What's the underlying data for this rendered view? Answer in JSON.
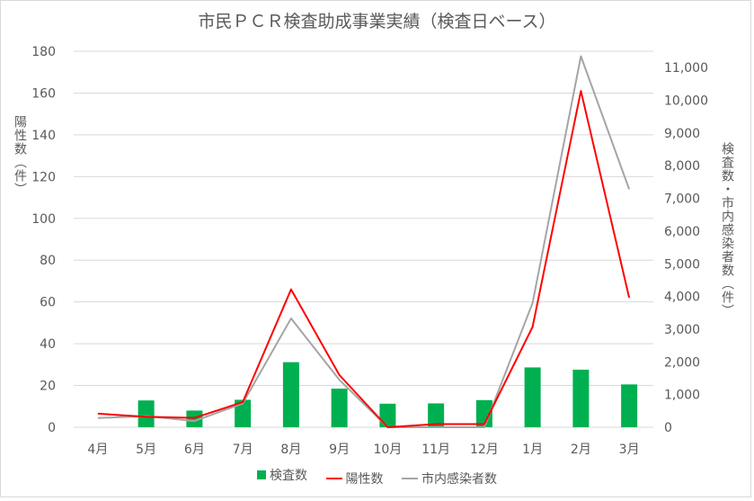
{
  "chart_data": {
    "type": "bar",
    "title": "市民ＰＣＲ検査助成事業実績（検査日ベース）",
    "ylabel": "陽性数（件）",
    "y2label": "検査数・市内感染者数（件）",
    "categories": [
      "4月",
      "5月",
      "6月",
      "7月",
      "8月",
      "9月",
      "10月",
      "11月",
      "12月",
      "1月",
      "2月",
      "3月"
    ],
    "ylim": [
      0,
      180
    ],
    "y2lim": [
      0,
      11500
    ],
    "yticks": [
      0,
      20,
      40,
      60,
      80,
      100,
      120,
      140,
      160,
      180
    ],
    "y2ticks": [
      0,
      1000,
      2000,
      3000,
      4000,
      5000,
      6000,
      7000,
      8000,
      9000,
      10000,
      11000
    ],
    "y2tick_labels": [
      "0",
      "1,000",
      "2,000",
      "3,000",
      "4,000",
      "5,000",
      "6,000",
      "7,000",
      "8,000",
      "9,000",
      "10,000",
      "11,000"
    ],
    "grid": true,
    "legend_position": "bottom",
    "series": [
      {
        "name": "検査数",
        "type": "bar",
        "axis": "right",
        "color": "#00b050",
        "values": [
          0,
          820,
          510,
          840,
          1990,
          1180,
          720,
          730,
          830,
          1830,
          1760,
          1310
        ]
      },
      {
        "name": "陽性数",
        "type": "line",
        "axis": "left",
        "color": "#ff0000",
        "values": [
          6.5,
          5,
          4.5,
          12,
          66,
          25,
          0,
          1.5,
          1.5,
          48,
          161,
          62
        ]
      },
      {
        "name": "市内感染者数",
        "type": "line",
        "axis": "right",
        "color": "#a5a5a5",
        "values": [
          280,
          340,
          190,
          730,
          3330,
          1450,
          0,
          0,
          0,
          3800,
          11350,
          7280
        ]
      }
    ]
  }
}
